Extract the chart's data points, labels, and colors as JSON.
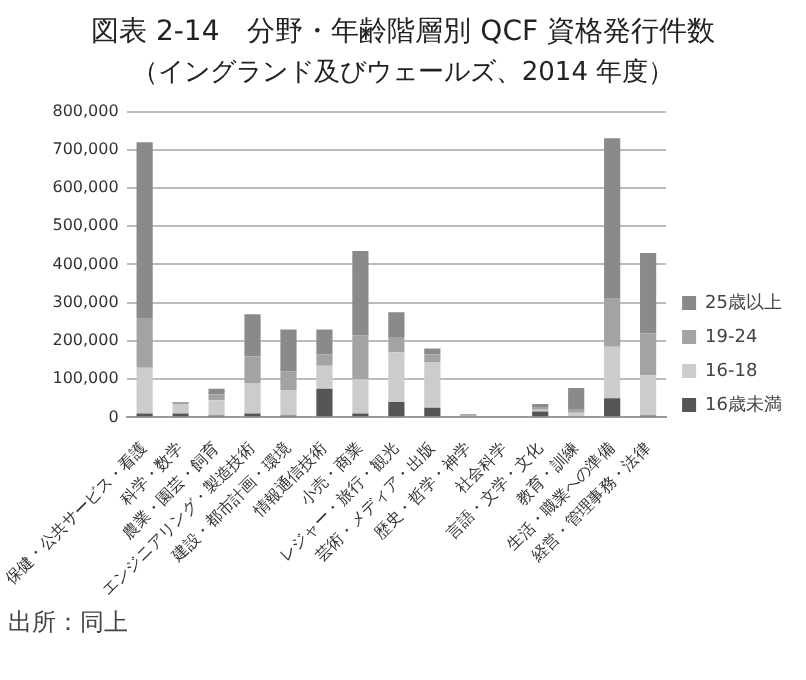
{
  "chart_data": {
    "type": "bar",
    "stacked": true,
    "title": "図表 2-14　分野・年齢階層別 QCF 資格発行件数",
    "subtitle": "（イングランド及びウェールズ、2014 年度）",
    "categories": [
      "保健・公共サービス・看護",
      "科学・数学",
      "農業・園芸・飼育",
      "エンジニアリング・製造技術",
      "建設・都市計画・環境",
      "情報通信技術",
      "小売・商業",
      "レジャー・旅行・観光",
      "芸術・メディア・出版",
      "歴史・哲学・神学",
      "社会科学",
      "言語・文学・文化",
      "教育・訓練",
      "生活・職業への準備",
      "経営・管理事務・法律"
    ],
    "series": [
      {
        "name": "16歳未満",
        "color": "#555555",
        "values": [
          10000,
          10000,
          5000,
          10000,
          5000,
          75000,
          10000,
          40000,
          25000,
          null,
          0,
          15000,
          2000,
          50000,
          5000
        ]
      },
      {
        "name": "16-18",
        "color": "#cccccc",
        "values": [
          120000,
          25000,
          40000,
          80000,
          65000,
          60000,
          90000,
          130000,
          120000,
          3000,
          0,
          5000,
          10000,
          135000,
          105000
        ]
      },
      {
        "name": "19-24",
        "color": "#a3a3a3",
        "values": [
          130000,
          5000,
          15000,
          70000,
          50000,
          30000,
          115000,
          40000,
          20000,
          2000,
          0,
          5000,
          10000,
          125000,
          110000
        ]
      },
      {
        "name": "25歳以上",
        "color": "#8a8a8a",
        "values": [
          460000,
          0,
          15000,
          110000,
          110000,
          65000,
          220000,
          65000,
          15000,
          3000,
          null,
          10000,
          55000,
          420000,
          210000
        ]
      }
    ],
    "ylim": [
      0,
      800000
    ],
    "yticks": [
      0,
      {
        "value": 100000,
        "label": "100,000"
      },
      {
        "value": 200000,
        "label": "200,000"
      },
      {
        "value": 300000,
        "label": "300,000"
      },
      {
        "value": 400000,
        "label": "400,000"
      },
      {
        "value": 500000,
        "label": "500,000"
      },
      {
        "value": 600000,
        "label": "600,000"
      },
      {
        "value": 700000,
        "label": "700,000"
      },
      {
        "value": 800000,
        "label": "800,000"
      }
    ],
    "grid": "y",
    "legend": "right",
    "annotations": [
      "出所：同上"
    ]
  }
}
